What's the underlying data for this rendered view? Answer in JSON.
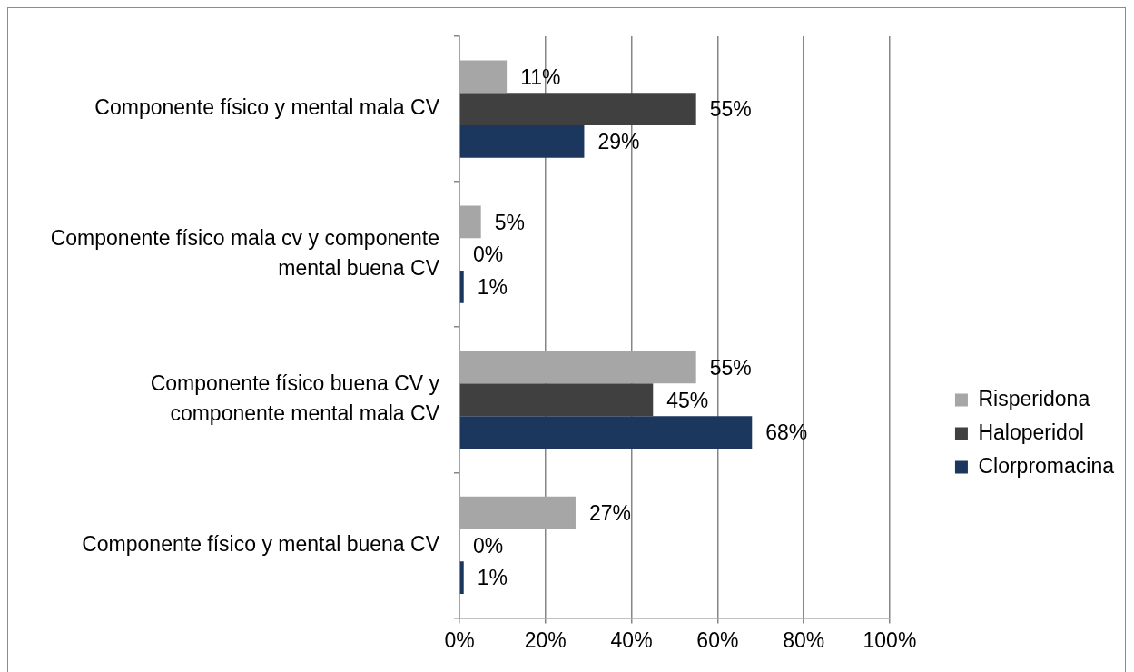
{
  "chart_data": {
    "type": "bar",
    "orientation": "horizontal",
    "categories": [
      "Componente físico y mental mala CV",
      "Componente físico mala cv y componente mental buena CV",
      "Componente físico buena CV y componente mental mala CV",
      "Componente físico y mental buena CV"
    ],
    "series": [
      {
        "name": "Risperidona",
        "color": "#a6a6a6",
        "values": [
          11,
          5,
          55,
          27
        ],
        "value_labels": [
          "11%",
          "5%",
          "55%",
          "27%"
        ]
      },
      {
        "name": "Haloperidol",
        "color": "#404040",
        "values": [
          55,
          0,
          45,
          0
        ],
        "value_labels": [
          "55%",
          "0%",
          "45%",
          "0%"
        ]
      },
      {
        "name": "Clorpromacina",
        "color": "#1c375e",
        "values": [
          29,
          1,
          68,
          1
        ],
        "value_labels": [
          "29%",
          "1%",
          "68%",
          "1%"
        ]
      }
    ],
    "xlim": [
      0,
      100
    ],
    "xticks": [
      {
        "value": 0,
        "label": "0%"
      },
      {
        "value": 20,
        "label": "20%"
      },
      {
        "value": 40,
        "label": "40%"
      },
      {
        "value": 60,
        "label": "60%"
      },
      {
        "value": 80,
        "label": "80%"
      },
      {
        "value": 100,
        "label": "100%"
      }
    ],
    "grid": "x",
    "legend": "right"
  }
}
